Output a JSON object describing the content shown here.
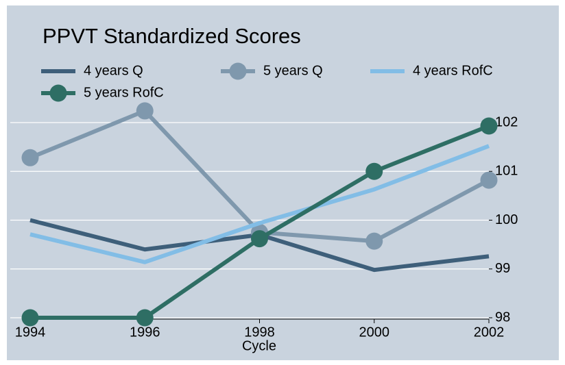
{
  "chart_data": {
    "type": "line",
    "title": "PPVT Standardized Scores",
    "xlabel": "Cycle",
    "x": [
      1994,
      1996,
      1998,
      2000,
      2002
    ],
    "xlim": [
      1994,
      2002
    ],
    "xticks": [
      1994,
      1996,
      1998,
      2000,
      2002
    ],
    "ylim": [
      98,
      102.4
    ],
    "yticks": [
      98,
      99,
      100,
      101,
      102
    ],
    "y_axis_side": "right",
    "grid": true,
    "legend": "top",
    "series": [
      {
        "name": "4 years Q",
        "color": "#3e5f7a",
        "markers": false,
        "values": [
          100.0,
          99.4,
          99.7,
          98.98,
          99.26
        ]
      },
      {
        "name": "5 years Q",
        "color": "#7f98ad",
        "markers": true,
        "values": [
          101.28,
          102.24,
          99.75,
          99.57,
          100.82
        ]
      },
      {
        "name": "4 years RofC",
        "color": "#82bde6",
        "markers": false,
        "values": [
          99.71,
          99.14,
          99.94,
          100.63,
          101.52
        ]
      },
      {
        "name": "5 years RofC",
        "color": "#2e6e64",
        "markers": true,
        "values": [
          98.0,
          98.0,
          99.62,
          101.0,
          101.93
        ]
      }
    ]
  }
}
